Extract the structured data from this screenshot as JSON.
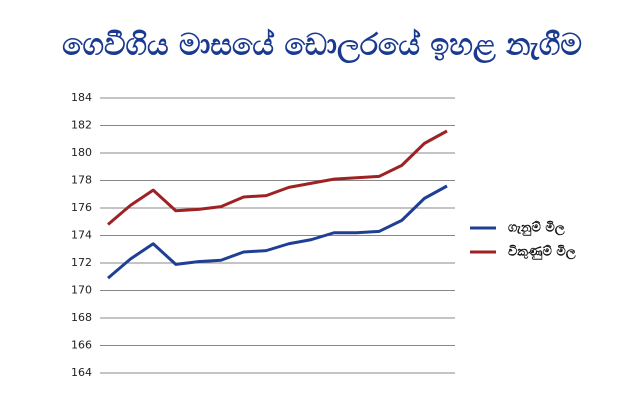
{
  "chart_data": {
    "type": "line",
    "title": "ගෙවීගිය මාසයේ ඩොලරයේ ඉහළ නැගීම",
    "categories": [
      null,
      null,
      null,
      null,
      null,
      null,
      null,
      null,
      null,
      null,
      null,
      null,
      null,
      null,
      null,
      null
    ],
    "series": [
      {
        "name": "ගැනුම් මිල",
        "color": "#1f3f94",
        "values": [
          170.9,
          172.3,
          173.4,
          171.9,
          172.1,
          172.2,
          172.8,
          172.9,
          173.4,
          173.7,
          174.2,
          174.2,
          174.3,
          175.1,
          176.7,
          177.6
        ]
      },
      {
        "name": "විකුණුම් මිල",
        "color": "#9e2124",
        "values": [
          174.8,
          176.2,
          177.3,
          175.8,
          175.9,
          176.1,
          176.8,
          176.9,
          177.5,
          177.8,
          178.1,
          178.2,
          178.3,
          179.1,
          180.7,
          181.6
        ]
      }
    ],
    "ylim": [
      164,
      184
    ],
    "yticks": [
      164,
      166,
      168,
      170,
      172,
      174,
      176,
      178,
      180,
      182,
      184
    ],
    "grid": true,
    "legend": "right"
  }
}
